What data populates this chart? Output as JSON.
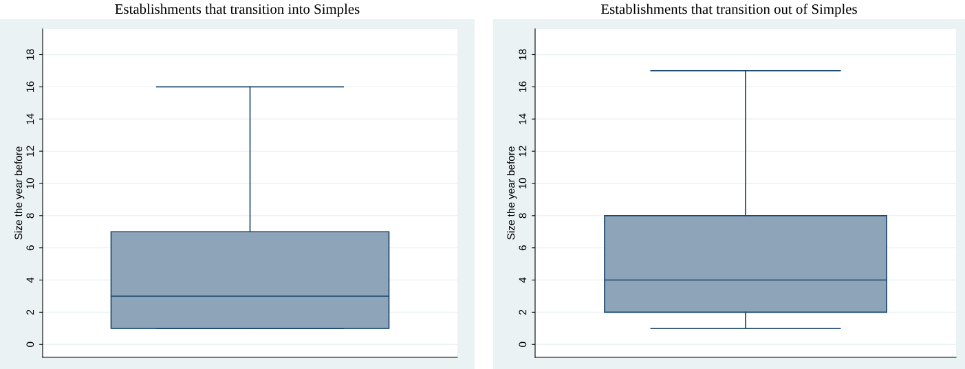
{
  "chart_data": [
    {
      "type": "box",
      "title": "Establishments that transition into Simples",
      "ylabel": "Size the year before",
      "categories": [
        null
      ],
      "boxes": [
        {
          "low": 1,
          "q1": 1,
          "median": 3,
          "q3": 7,
          "high": 16
        }
      ],
      "color": "#8ea4b9",
      "ylim": [
        -0.8,
        19.6
      ],
      "yticks": [
        0,
        2,
        4,
        6,
        8,
        10,
        12,
        14,
        16,
        18
      ],
      "grid": "y"
    },
    {
      "type": "box",
      "title": "Establishments that transition out of Simples",
      "ylabel": "Size the year before",
      "categories": [
        null
      ],
      "boxes": [
        {
          "low": 1,
          "q1": 2,
          "median": 4,
          "q3": 8,
          "high": 17
        }
      ],
      "color": "#8ea4b9",
      "ylim": [
        -0.8,
        19.6
      ],
      "yticks": [
        0,
        2,
        4,
        6,
        8,
        10,
        12,
        14,
        16,
        18
      ],
      "grid": "y"
    }
  ]
}
